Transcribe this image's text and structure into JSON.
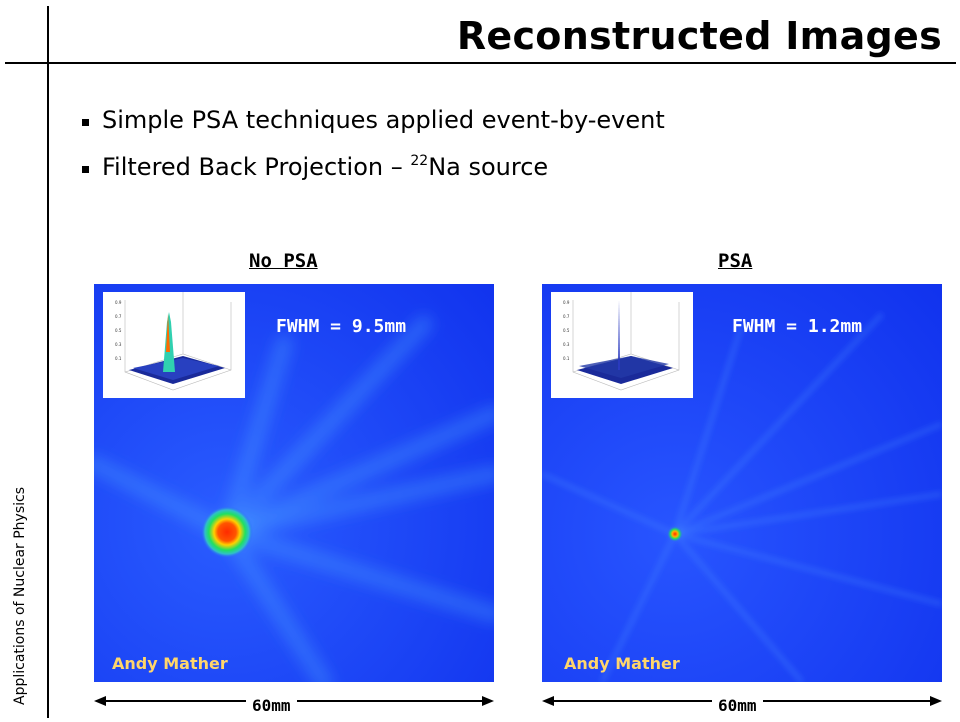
{
  "slide": {
    "title": "Reconstructed Images",
    "side_label": "Applications of Nuclear Physics",
    "bullets": [
      {
        "text": "Simple PSA techniques applied event-by-event"
      },
      {
        "prefix": "Filtered Back Projection – ",
        "sup": "22",
        "suffix": "Na source"
      }
    ]
  },
  "panels": [
    {
      "label": "No PSA",
      "fwhm": "FWHM = 9.5mm",
      "credit": "Andy Mather",
      "scale": "60mm"
    },
    {
      "label": "PSA",
      "fwhm": "FWHM = 1.2mm",
      "credit": "Andy Mather",
      "scale": "60mm"
    }
  ],
  "colors": {
    "background_blue": "#1a3ff0",
    "hot_spot": "#ff2a00",
    "credit": "#ffd66b"
  }
}
